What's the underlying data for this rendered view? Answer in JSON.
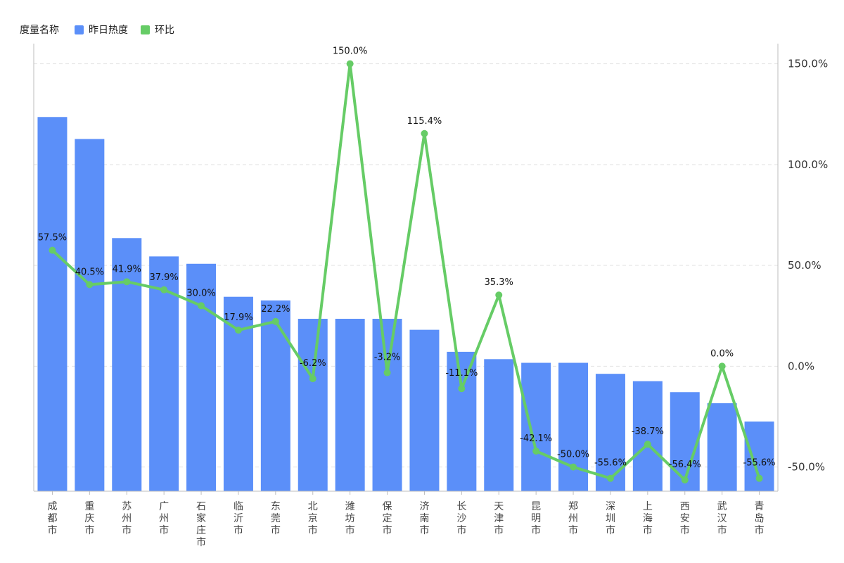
{
  "legend": {
    "title": "度量名称",
    "items": [
      {
        "label": "昨日热度",
        "color": "#5b8ff9"
      },
      {
        "label": "环比",
        "color": "#66cc66"
      }
    ]
  },
  "chart_data": {
    "type": "bar+line",
    "categories": [
      "成都市",
      "重庆市",
      "苏州市",
      "广州市",
      "石家庄市",
      "临沂市",
      "东莞市",
      "北京市",
      "潍坊市",
      "保定市",
      "济南市",
      "长沙市",
      "天津市",
      "昆明市",
      "郑州市",
      "深圳市",
      "上海市",
      "西安市",
      "武汉市",
      "青岛市"
    ],
    "series": [
      {
        "name": "昨日热度",
        "type": "bar",
        "axis": "left",
        "color": "#5b8ff9",
        "values": [
          102,
          96,
          69,
          64,
          62,
          53,
          52,
          47,
          47,
          47,
          44,
          38,
          36,
          35,
          35,
          32,
          30,
          27,
          24,
          19
        ]
      },
      {
        "name": "环比",
        "type": "line",
        "axis": "right",
        "color": "#66cc66",
        "values": [
          57.5,
          40.5,
          41.9,
          37.9,
          30.0,
          17.9,
          22.2,
          -6.2,
          150.0,
          -3.2,
          115.4,
          -11.1,
          35.3,
          -42.1,
          -50.0,
          -55.6,
          -38.7,
          -56.4,
          0.0,
          -55.6
        ],
        "labels": [
          "57.5%",
          "40.5%",
          "41.9%",
          "37.9%",
          "30.0%",
          "17.9%",
          "22.2%",
          "-6.2%",
          "150.0%",
          "-3.2%",
          "115.4%",
          "-11.1%",
          "35.3%",
          "-42.1%",
          "-50.0%",
          "-55.6%",
          "-38.7%",
          "-56.4%",
          "0.0%",
          "-55.6%"
        ]
      }
    ],
    "left_axis": {
      "ylim": [
        0,
        122
      ],
      "tick_labels_shown": false
    },
    "right_axis": {
      "ylim": [
        -62,
        160
      ],
      "ticks": [
        150,
        100,
        50,
        0,
        -50
      ],
      "tick_labels": [
        "150.0%",
        "100.0%",
        "50.0%",
        "0.0%",
        "-50.0%"
      ]
    },
    "grid": "horizontal-dashed",
    "legend_position": "top-left"
  }
}
